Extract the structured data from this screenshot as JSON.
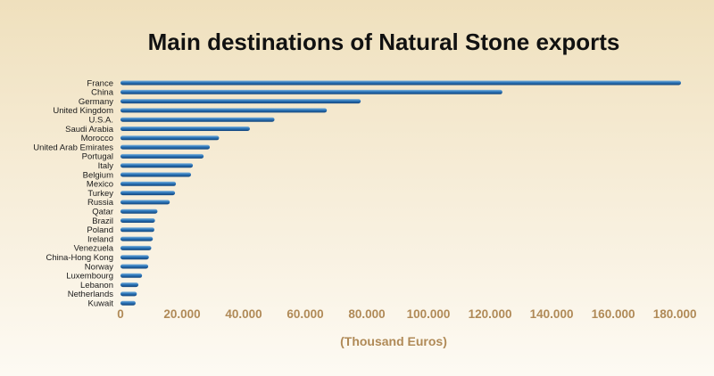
{
  "chart_data": {
    "type": "bar",
    "orientation": "horizontal",
    "title": "Main destinations of Natural Stone exports",
    "xlabel": "(Thousand Euros)",
    "ylabel": "",
    "categories": [
      "France",
      "China",
      "Germany",
      "United Kingdom",
      "U.S.A.",
      "Saudi Arabia",
      "Morocco",
      "United Arab Emirates",
      "Portugal",
      "Italy",
      "Belgium",
      "Mexico",
      "Turkey",
      "Russia",
      "Qatar",
      "Brazil",
      "Poland",
      "Ireland",
      "Venezuela",
      "China-Hong Kong",
      "Norway",
      "Luxembourg",
      "Lebanon",
      "Netherlands",
      "Kuwait"
    ],
    "values": [
      182000,
      124000,
      78000,
      67000,
      50000,
      42000,
      32000,
      29000,
      27000,
      23500,
      22900,
      18000,
      17700,
      16000,
      12000,
      11200,
      11000,
      10500,
      10000,
      9200,
      9000,
      7000,
      5800,
      5300,
      4900
    ],
    "xlim": [
      0,
      190000
    ],
    "ticks": [
      0,
      20000,
      40000,
      60000,
      80000,
      100000,
      120000,
      140000,
      160000,
      180000
    ],
    "tick_labels": [
      "0",
      "20.000",
      "40.000",
      "60.000",
      "80.000",
      "100.000",
      "120.000",
      "140.000",
      "160.000",
      "180.000"
    ],
    "grid": false,
    "bar_color": "#2a74b8"
  }
}
